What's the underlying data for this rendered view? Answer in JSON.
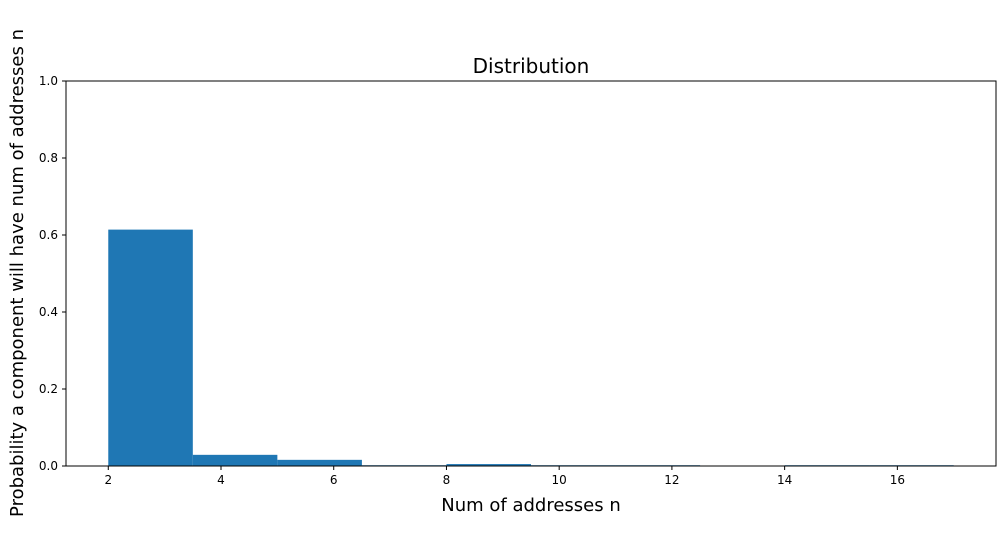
{
  "chart_data": {
    "type": "bar",
    "title": "Distribution",
    "xlabel": "Num of addresses n",
    "ylabel": "Probability a component will have num of addresses n",
    "xlim": [
      1.25,
      17.75
    ],
    "ylim": [
      0.0,
      1.0
    ],
    "xticks": [
      2,
      4,
      6,
      8,
      10,
      12,
      14,
      16
    ],
    "yticks": [
      0.0,
      0.2,
      0.4,
      0.6,
      0.8,
      1.0
    ],
    "bins": [
      {
        "x0": 2.0,
        "x1": 3.5,
        "value": 0.614
      },
      {
        "x0": 3.5,
        "x1": 5.0,
        "value": 0.029
      },
      {
        "x0": 5.0,
        "x1": 6.5,
        "value": 0.016
      },
      {
        "x0": 6.5,
        "x1": 8.0,
        "value": 0.002
      },
      {
        "x0": 8.0,
        "x1": 9.5,
        "value": 0.005
      },
      {
        "x0": 9.5,
        "x1": 11.0,
        "value": 0.002
      },
      {
        "x0": 11.0,
        "x1": 12.5,
        "value": 0.002
      },
      {
        "x0": 12.5,
        "x1": 14.0,
        "value": 0.0
      },
      {
        "x0": 14.0,
        "x1": 15.5,
        "value": 0.002
      },
      {
        "x0": 15.5,
        "x1": 17.0,
        "value": 0.002
      }
    ],
    "grid": false,
    "colors": {
      "bar": "#1f77b4",
      "axis": "#000000"
    }
  }
}
